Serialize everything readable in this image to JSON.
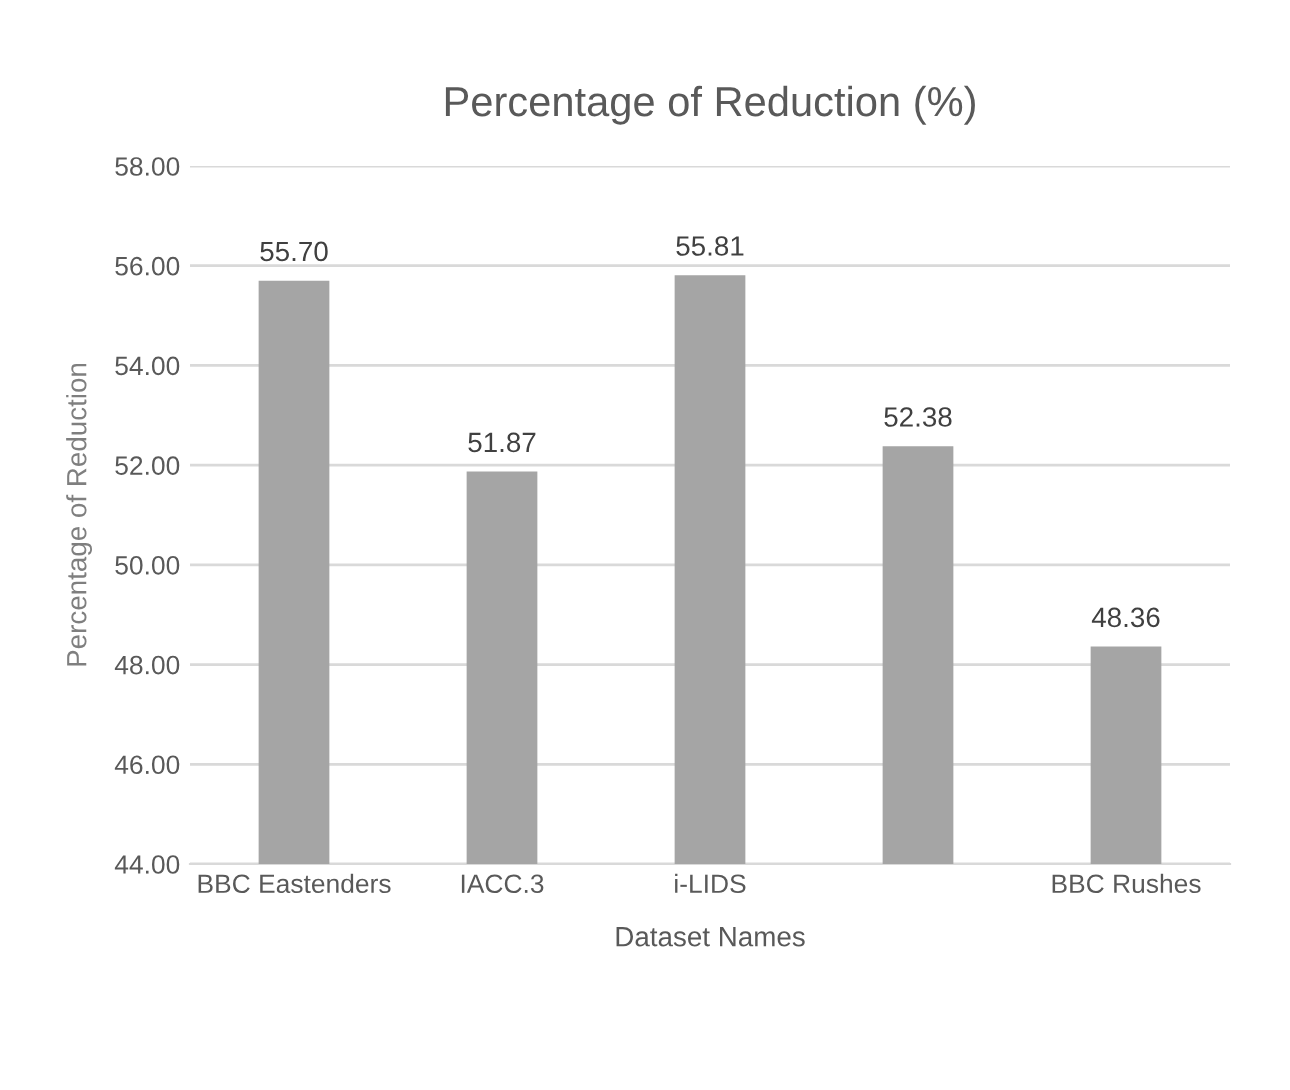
{
  "chart_data": {
    "type": "bar",
    "title": "Percentage of Reduction (%)",
    "xlabel": "Dataset Names",
    "ylabel": "Percentage of Reduction",
    "categories": [
      "BBC Eastenders",
      "IACC.3",
      "i-LIDS",
      null,
      "BBC Rushes"
    ],
    "values": [
      55.7,
      51.87,
      55.81,
      52.38,
      48.36
    ],
    "value_labels": [
      "55.70",
      "51.87",
      "55.81",
      "52.38",
      "48.36"
    ],
    "color": "#a5a5a5",
    "ylim": [
      44,
      58
    ],
    "yticks": [
      {
        "value": 44,
        "label": "44.00"
      },
      {
        "value": 46,
        "label": "46.00"
      },
      {
        "value": 48,
        "label": "48.00"
      },
      {
        "value": 50,
        "label": "50.00"
      },
      {
        "value": 52,
        "label": "52.00"
      },
      {
        "value": 54,
        "label": "54.00"
      },
      {
        "value": 56,
        "label": "56.00"
      },
      {
        "value": 58,
        "label": "58.00"
      }
    ],
    "grid": "y",
    "legend": false
  }
}
